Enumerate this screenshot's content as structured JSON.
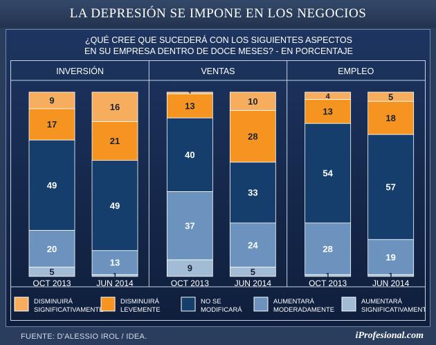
{
  "header": {
    "title": "LA DEPRESIÓN SE IMPONE EN LOS NEGOCIOS"
  },
  "question": {
    "line1": "¿QUÉ CREE QUE SUCEDERÁ CON LOS SIGUIENTES ASPECTOS",
    "line2": "EN SU EMPRESA DENTRO DE DOCE MESES? - EN PORCENTAJE"
  },
  "colors": {
    "dis_sig": "#f7ad5e",
    "dis_lev": "#f59420",
    "no_mod": "#153e6c",
    "aum_mod": "#6b93bd",
    "aum_sig": "#a2bcd6"
  },
  "chart_data": {
    "type": "stacked-bar",
    "unit": "porcentaje",
    "ylim": [
      0,
      100
    ],
    "categories": [
      "OCT 2013",
      "JUN 2014"
    ],
    "series_names": [
      "DISMINUIRÁ SIGNIFICATIVAMENTE",
      "DISMINUIRÁ LEVEMENTE",
      "NO SE MODIFICARÁ",
      "AUMENTARÁ MODERADAMENTE",
      "AUMENTARÁ SIGNIFICATIVAMENTE"
    ],
    "legend": [
      {
        "key": "dis_sig",
        "line1": "DISMINUIRÁ",
        "line2": "SIGNIFICATIVAMENTE"
      },
      {
        "key": "dis_lev",
        "line1": "DISMINUIRÁ",
        "line2": "LEVEMENTE"
      },
      {
        "key": "no_mod",
        "line1": "NO SE",
        "line2": "MODIFICARÁ"
      },
      {
        "key": "aum_mod",
        "line1": "AUMENTARÁ",
        "line2": "MODERADAMENTE"
      },
      {
        "key": "aum_sig",
        "line1": "AUMENTARÁ",
        "line2": "SIGNIFICATIVAMENTE"
      }
    ],
    "panels": [
      {
        "title": "INVERSIÓN",
        "bars": [
          {
            "label": "OCT 2013",
            "values": [
              9,
              17,
              49,
              20,
              5
            ]
          },
          {
            "label": "JUN 2014",
            "values": [
              16,
              21,
              49,
              13,
              1
            ]
          }
        ]
      },
      {
        "title": "VENTAS",
        "bars": [
          {
            "label": "OCT 2013",
            "values": [
              1,
              13,
              40,
              37,
              9
            ]
          },
          {
            "label": "JUN 2014",
            "values": [
              10,
              28,
              33,
              24,
              5
            ]
          }
        ]
      },
      {
        "title": "EMPLEO",
        "bars": [
          {
            "label": "OCT 2013",
            "values": [
              4,
              13,
              54,
              28,
              1
            ]
          },
          {
            "label": "JUN 2014",
            "values": [
              5,
              18,
              57,
              19,
              1
            ]
          }
        ]
      }
    ]
  },
  "source": "FUENTE: D'ALESSIO IROL / IDEA.",
  "brand": "iProfesional.com"
}
